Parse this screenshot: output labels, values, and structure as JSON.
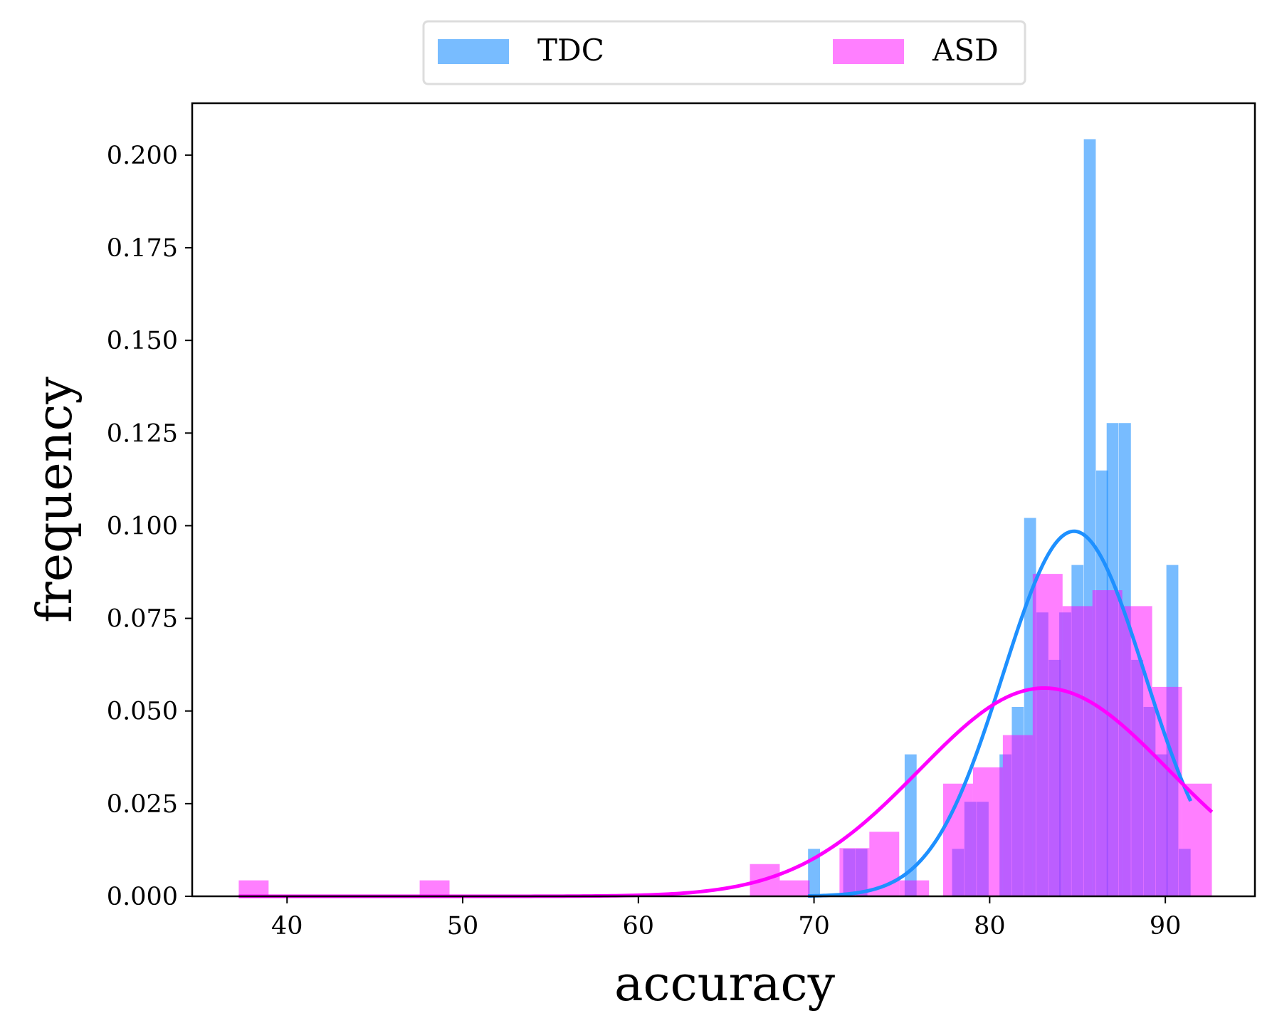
{
  "chart_data": {
    "type": "bar",
    "xlabel": "accuracy",
    "ylabel": "frequency",
    "xlim": [
      34.6,
      95.1
    ],
    "ylim": [
      0,
      0.214
    ],
    "x_ticks": [
      40,
      50,
      60,
      70,
      80,
      90
    ],
    "y_ticks": [
      0.0,
      0.025,
      0.05,
      0.075,
      0.1,
      0.125,
      0.15,
      0.175,
      0.2
    ],
    "x_tick_labels": [
      "40",
      "50",
      "60",
      "70",
      "80",
      "90"
    ],
    "y_tick_labels": [
      "0.000",
      "0.025",
      "0.050",
      "0.075",
      "0.100",
      "0.125",
      "0.150",
      "0.175",
      "0.200"
    ],
    "grid": false,
    "legend_position": "top-center, above plot",
    "series": [
      {
        "name": "TDC",
        "kind": "histogram",
        "color": "#1e90ff",
        "bin_width": 0.68,
        "bins": [
          {
            "x": 70.0,
            "y": 0.0128
          },
          {
            "x": 72.0,
            "y": 0.0128
          },
          {
            "x": 72.7,
            "y": 0.0128
          },
          {
            "x": 75.5,
            "y": 0.0383
          },
          {
            "x": 78.2,
            "y": 0.0128
          },
          {
            "x": 78.9,
            "y": 0.0255
          },
          {
            "x": 79.6,
            "y": 0.0255
          },
          {
            "x": 80.9,
            "y": 0.0383
          },
          {
            "x": 81.6,
            "y": 0.0511
          },
          {
            "x": 82.3,
            "y": 0.1021
          },
          {
            "x": 83.0,
            "y": 0.0766
          },
          {
            "x": 83.7,
            "y": 0.0638
          },
          {
            "x": 84.3,
            "y": 0.0766
          },
          {
            "x": 85.0,
            "y": 0.0894
          },
          {
            "x": 85.7,
            "y": 0.2043
          },
          {
            "x": 86.4,
            "y": 0.1149
          },
          {
            "x": 87.0,
            "y": 0.1277
          },
          {
            "x": 87.7,
            "y": 0.1277
          },
          {
            "x": 88.4,
            "y": 0.0638
          },
          {
            "x": 89.1,
            "y": 0.0511
          },
          {
            "x": 89.8,
            "y": 0.0383
          },
          {
            "x": 90.4,
            "y": 0.0894
          },
          {
            "x": 91.1,
            "y": 0.0128
          }
        ],
        "fit_curve": {
          "mean": 84.8,
          "std": 4.05
        }
      },
      {
        "name": "ASD",
        "kind": "histogram",
        "color": "#ff00ff",
        "bin_width": 1.7,
        "bins": [
          {
            "x": 38.1,
            "y": 0.0043
          },
          {
            "x": 48.4,
            "y": 0.0043
          },
          {
            "x": 67.2,
            "y": 0.0087
          },
          {
            "x": 68.9,
            "y": 0.0043
          },
          {
            "x": 72.3,
            "y": 0.013
          },
          {
            "x": 74.0,
            "y": 0.0174
          },
          {
            "x": 75.7,
            "y": 0.0043
          },
          {
            "x": 78.2,
            "y": 0.0304
          },
          {
            "x": 79.9,
            "y": 0.0348
          },
          {
            "x": 81.6,
            "y": 0.0435
          },
          {
            "x": 83.3,
            "y": 0.087
          },
          {
            "x": 85.0,
            "y": 0.0783
          },
          {
            "x": 86.7,
            "y": 0.0826
          },
          {
            "x": 88.4,
            "y": 0.0783
          },
          {
            "x": 90.1,
            "y": 0.0565
          },
          {
            "x": 91.8,
            "y": 0.0304
          }
        ],
        "fit_curve": {
          "mean": 83.1,
          "std": 7.1
        }
      }
    ]
  }
}
